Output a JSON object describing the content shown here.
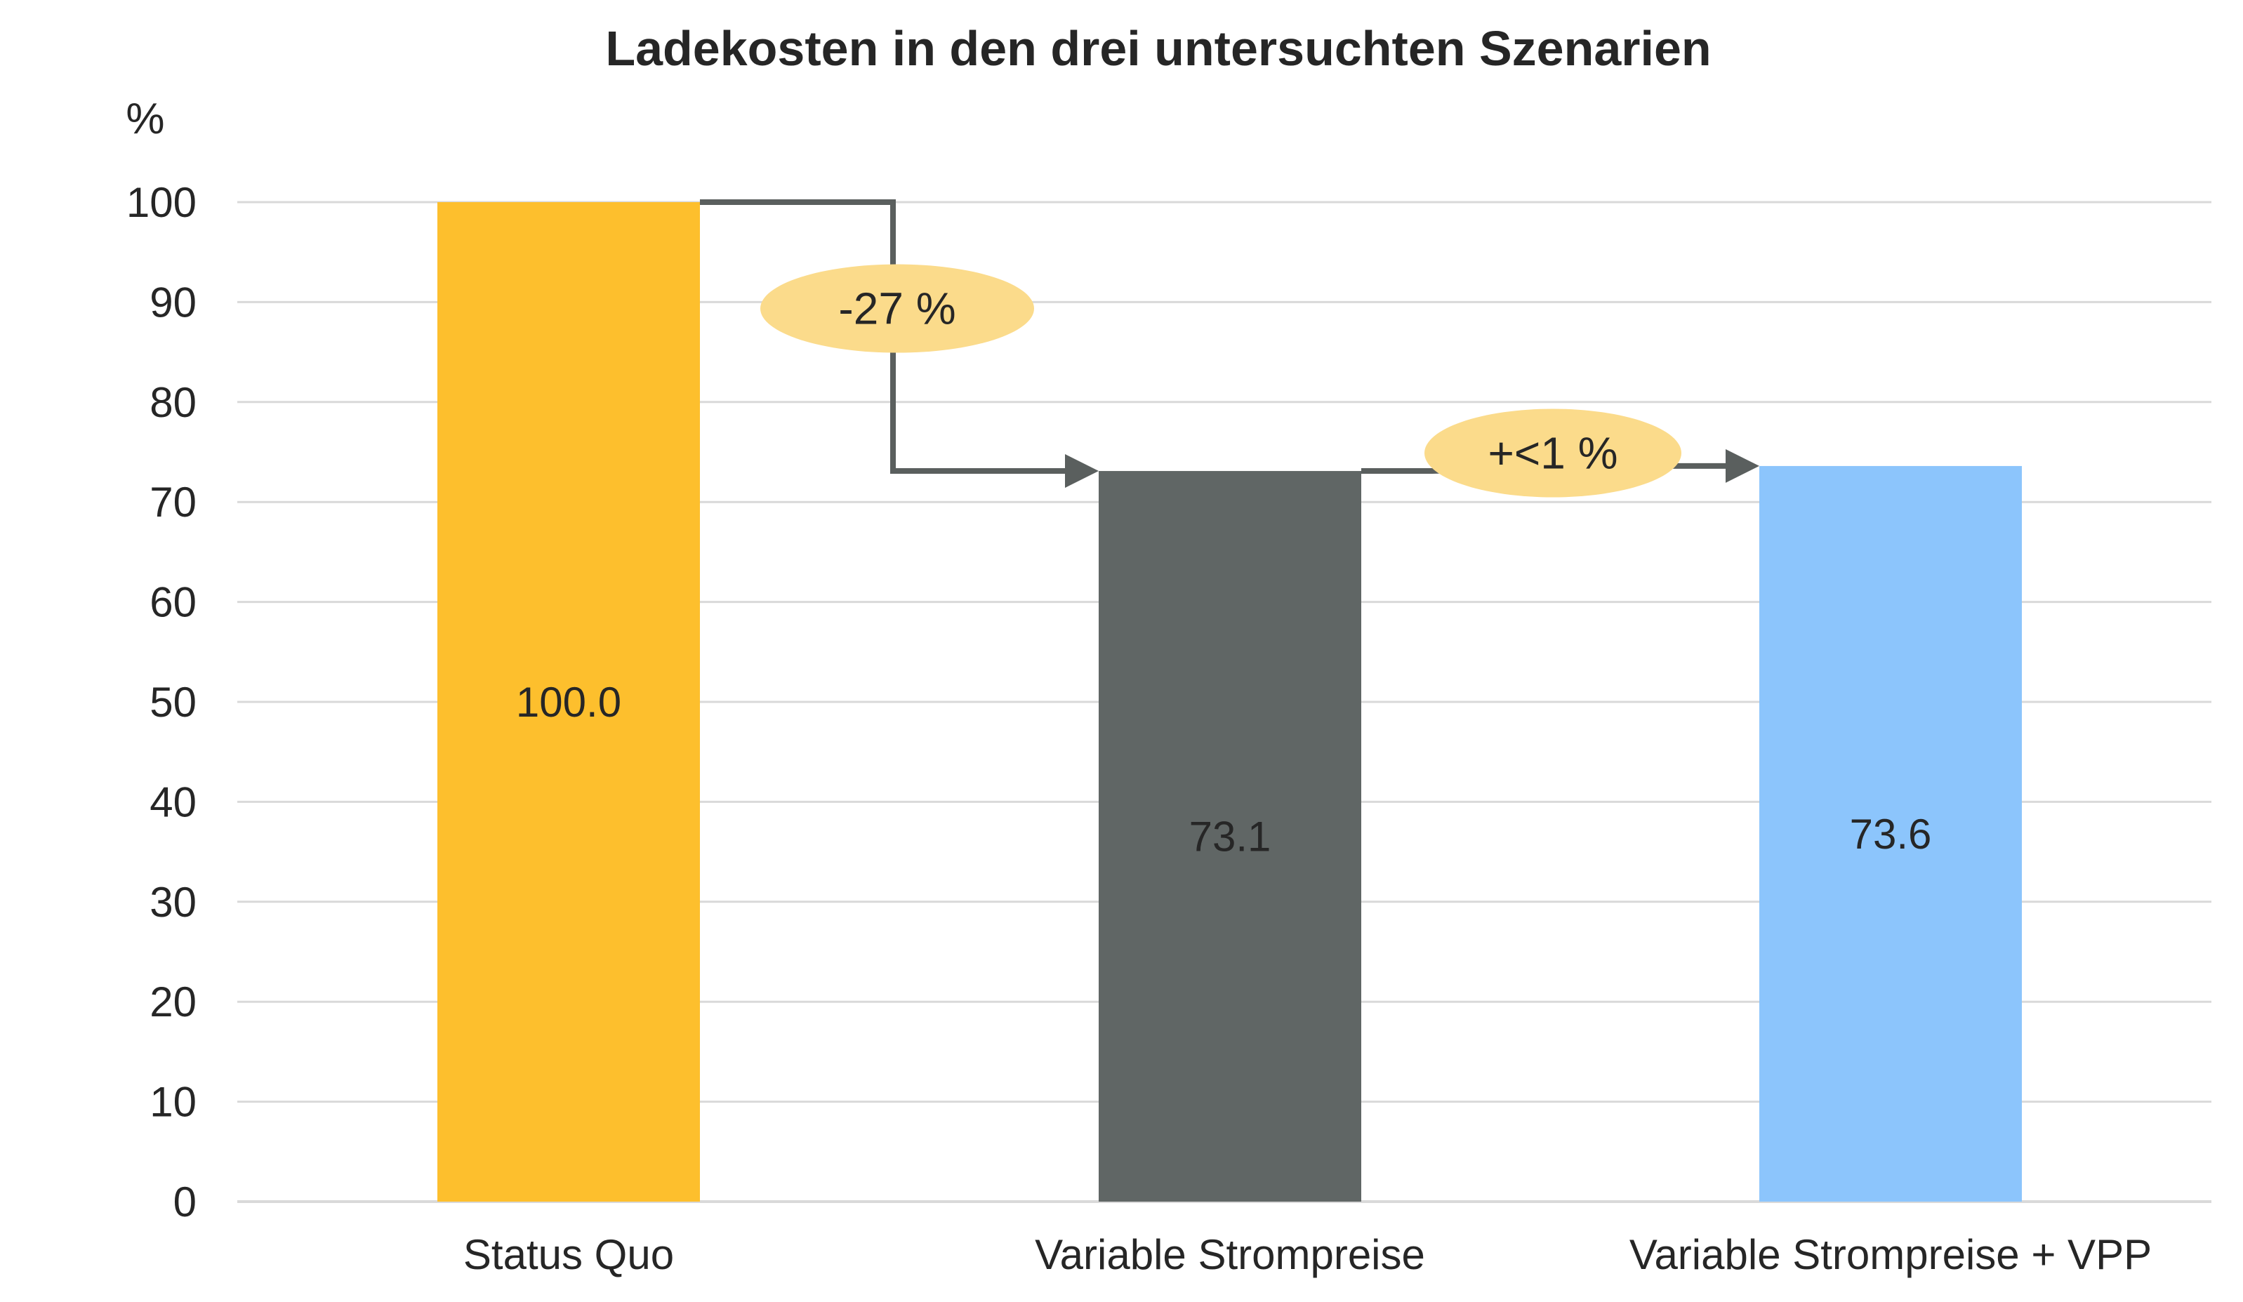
{
  "chart_data": {
    "type": "bar",
    "title": "Ladekosten in den drei untersuchten Szenarien",
    "ylabel": "%",
    "xlabel": "",
    "ylim": [
      0,
      100
    ],
    "yticks": [
      0,
      10,
      20,
      30,
      40,
      50,
      60,
      70,
      80,
      90,
      100
    ],
    "grid": true,
    "legend": "none",
    "categories": [
      "Status Quo",
      "Variable Strompreise",
      "Variable Strompreise + VPP"
    ],
    "values": [
      100.0,
      73.1,
      73.6
    ],
    "value_labels": [
      "100.0",
      "73.1",
      "73.6"
    ],
    "colors": [
      "#FDBF2D",
      "#606665",
      "#8CC5FC"
    ],
    "annotations": [
      {
        "text": "-27 %",
        "from": 0,
        "to": 1
      },
      {
        "text": "+<1 %",
        "from": 1,
        "to": 2
      }
    ],
    "annotation_color": "#FBDB8B",
    "connector_color": "#5A5F5E",
    "grid_color": "#D9D9D9"
  }
}
